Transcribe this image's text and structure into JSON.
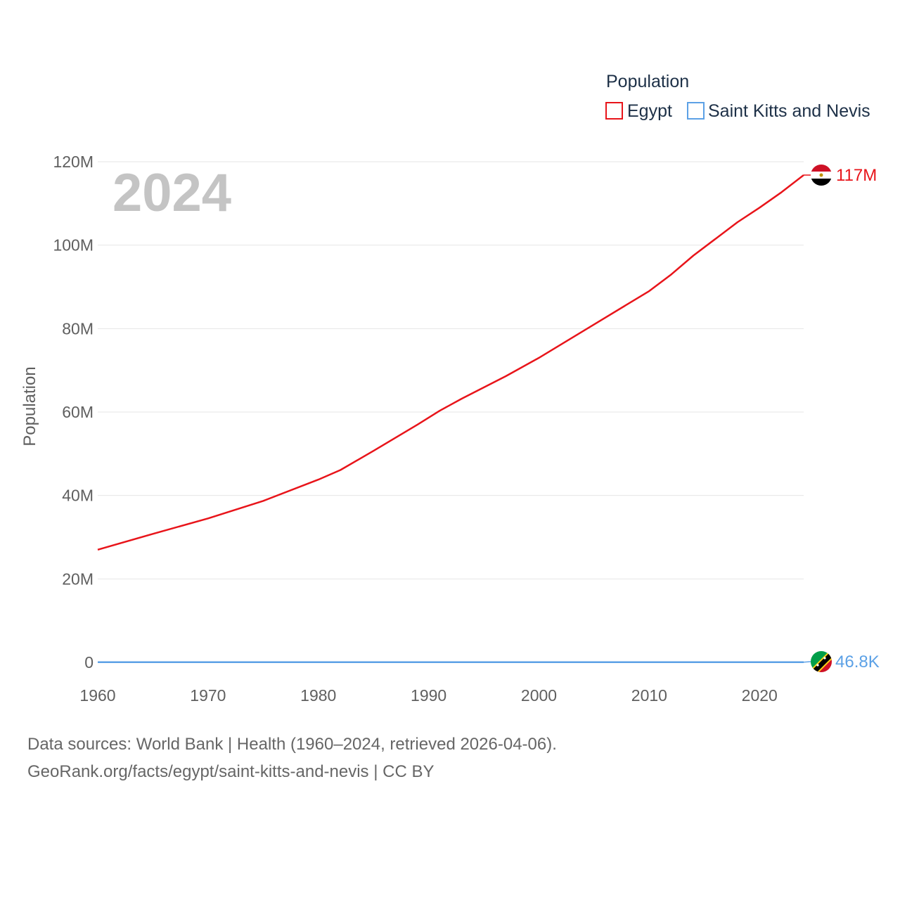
{
  "chart_data": {
    "type": "line",
    "year_label": "2024",
    "ylabel": "Population",
    "legend_title": "Population",
    "legend_placement": "top-right",
    "ylim": [
      0,
      120000000
    ],
    "xlim": [
      1960,
      2024
    ],
    "yticks": [
      {
        "value": 0,
        "label": "0"
      },
      {
        "value": 20000000,
        "label": "20M"
      },
      {
        "value": 40000000,
        "label": "40M"
      },
      {
        "value": 60000000,
        "label": "60M"
      },
      {
        "value": 80000000,
        "label": "80M"
      },
      {
        "value": 100000000,
        "label": "100M"
      },
      {
        "value": 120000000,
        "label": "120M"
      }
    ],
    "xticks": [
      1960,
      1970,
      1980,
      1990,
      2000,
      2010,
      2020
    ],
    "grid": true,
    "series": [
      {
        "name": "Egypt",
        "color": "#e8141a",
        "end_label": "117M",
        "flag": "egypt-flag",
        "x": [
          1960,
          1965,
          1970,
          1975,
          1980,
          1982,
          1985,
          1989,
          1991,
          1993,
          1997,
          2000,
          2005,
          2010,
          2012,
          2014,
          2018,
          2020,
          2022,
          2024
        ],
        "values": [
          27000000,
          30800000,
          34500000,
          38700000,
          43800000,
          46100000,
          50700000,
          57000000,
          60300000,
          63200000,
          68600000,
          73000000,
          81000000,
          89000000,
          93000000,
          97500000,
          105500000,
          109000000,
          112700000,
          116800000
        ]
      },
      {
        "name": "Saint Kitts and Nevis",
        "color": "#5ca1e6",
        "end_label": "46.8K",
        "flag": "saint-kitts-and-nevis-flag",
        "x": [
          1960,
          1970,
          1980,
          1990,
          2000,
          2010,
          2020,
          2024
        ],
        "values": [
          51000,
          45000,
          43000,
          41000,
          45500,
          49000,
          47500,
          46800
        ]
      }
    ]
  },
  "footer": {
    "line1": "Data sources: World Bank | Health (1960–2024, retrieved 2026-04-06).",
    "line2": "GeoRank.org/facts/egypt/saint-kitts-and-nevis | CC BY"
  }
}
